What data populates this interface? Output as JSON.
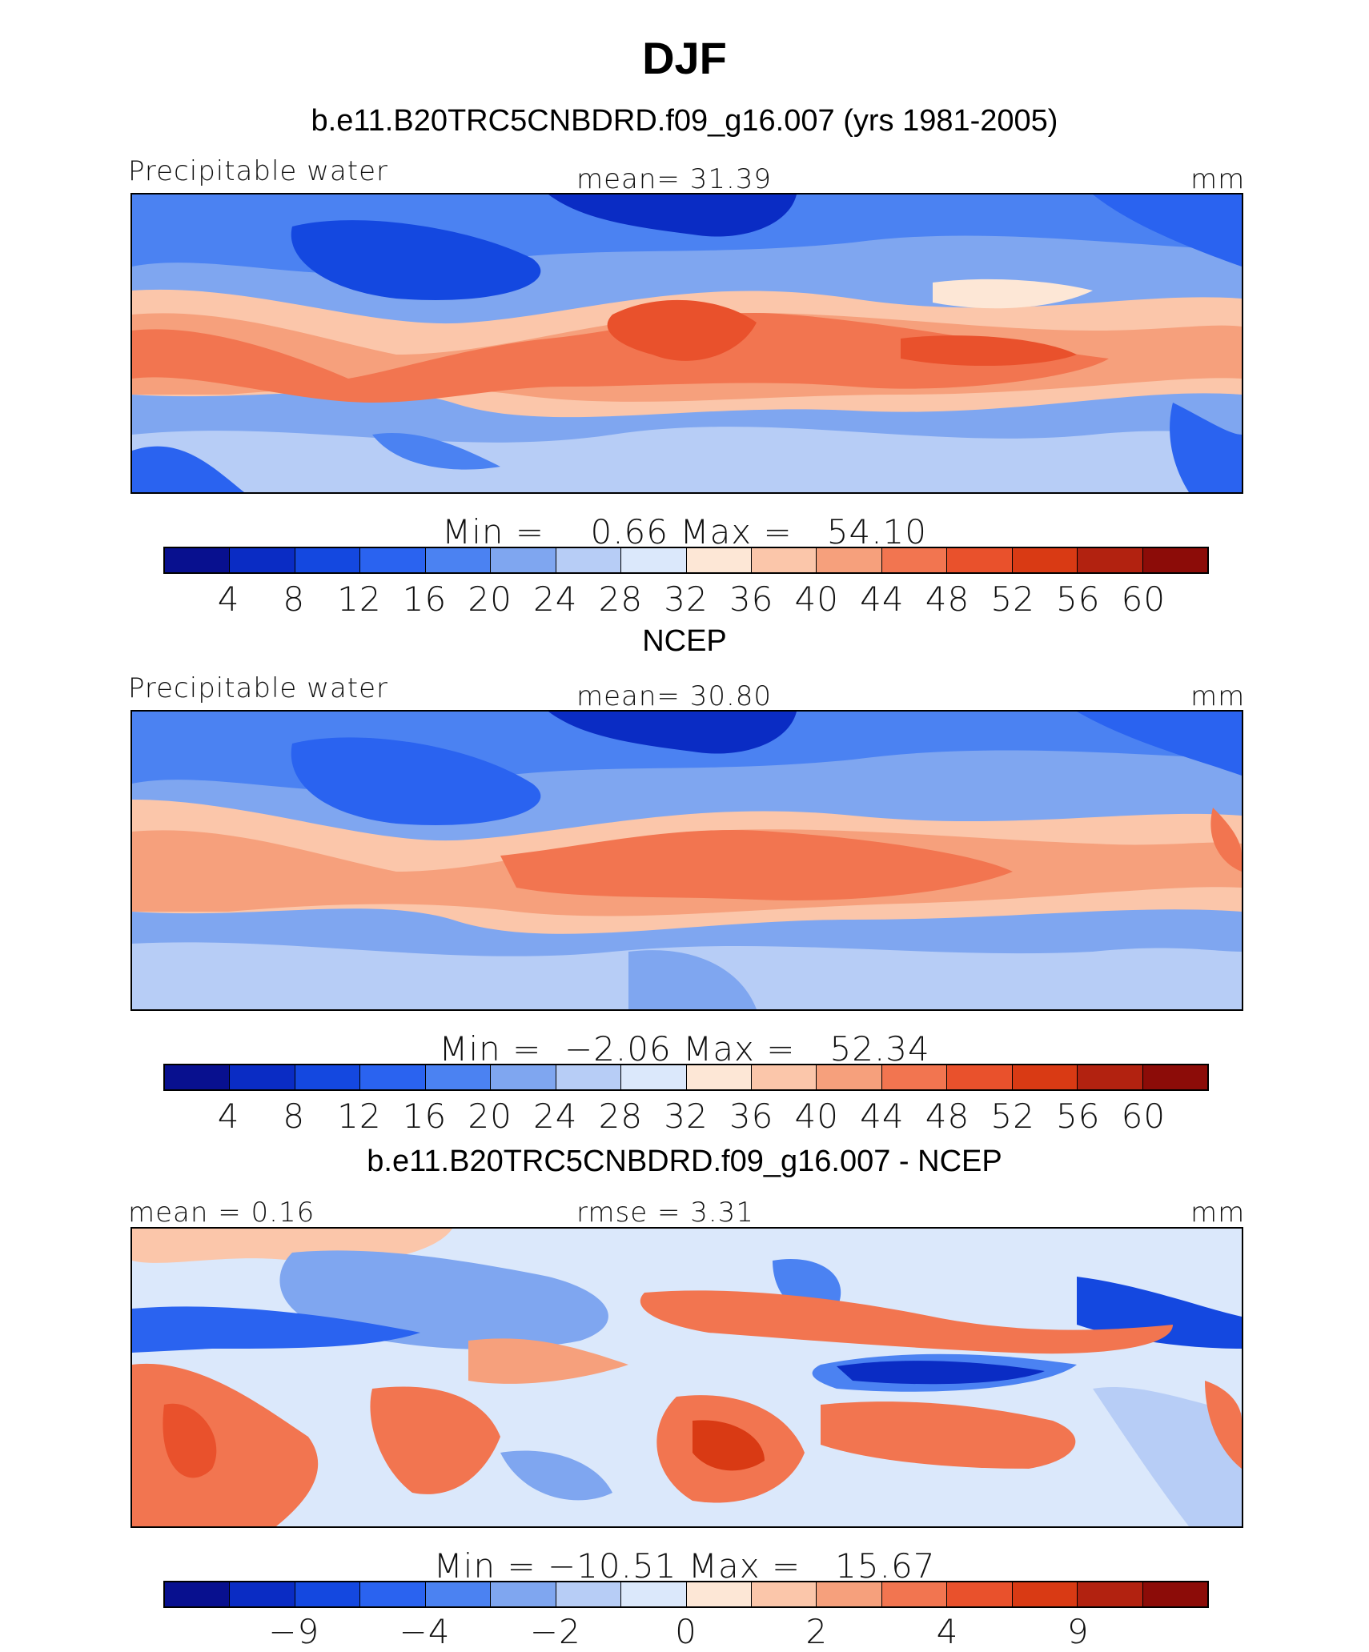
{
  "title": "DJF",
  "colors": {
    "scale": [
      "#08108f",
      "#0a2cc4",
      "#1448e0",
      "#2a63f0",
      "#4b82f2",
      "#7fa6f0",
      "#b7cdf6",
      "#dbe8fb",
      "#fde7d6",
      "#fbc6aa",
      "#f6a07c",
      "#f27550",
      "#e9512c",
      "#d93a14",
      "#b22210",
      "#8c0c08"
    ]
  },
  "panels": [
    {
      "title": "b.e11.B20TRC5CNBDRD.f09_g16.007 (yrs 1981-2005)",
      "left_label": "Precipitable water",
      "center_label": "mean=  31.39",
      "right_label": "mm",
      "minmax": "Min =    0.66 Max =   54.10",
      "ticks": [
        "4",
        "8",
        "12",
        "16",
        "20",
        "24",
        "28",
        "32",
        "36",
        "40",
        "44",
        "48",
        "52",
        "56",
        "60"
      ],
      "map_kind": "field"
    },
    {
      "title": "NCEP",
      "left_label": "Precipitable water",
      "center_label": "mean=  30.80",
      "right_label": "mm",
      "minmax": "Min =  −2.06 Max =   52.34",
      "ticks": [
        "4",
        "8",
        "12",
        "16",
        "20",
        "24",
        "28",
        "32",
        "36",
        "40",
        "44",
        "48",
        "52",
        "56",
        "60"
      ],
      "map_kind": "field"
    },
    {
      "title": "b.e11.B20TRC5CNBDRD.f09_g16.007 - NCEP",
      "left_label": "mean =   0.16",
      "center_label": "rmse =    3.31",
      "right_label": "mm",
      "minmax": "Min = −10.51 Max =   15.67",
      "ticks": [
        "−9",
        "−4",
        "−2",
        "0",
        "2",
        "4",
        "9"
      ],
      "map_kind": "diff"
    }
  ]
}
